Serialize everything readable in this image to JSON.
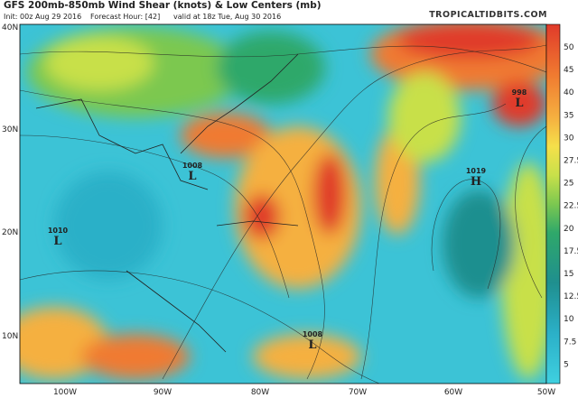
{
  "header": {
    "title": "GFS 200mb-850mb Wind Shear (knots) & Low Centers (mb)",
    "init": "Init: 00z Aug 29 2016",
    "forecast": "Forecast Hour: [42]",
    "valid": "valid at 18z Tue, Aug 30 2016",
    "site": "TROPICALTIDBITS.COM"
  },
  "colorbar": {
    "labels": [
      "50",
      "45",
      "40",
      "35",
      "30",
      "27.5",
      "25",
      "22.5",
      "20",
      "17.5",
      "15",
      "12.5",
      "10",
      "7.5",
      "5"
    ]
  },
  "axes": {
    "lat_labels": [
      "40N",
      "30N",
      "20N",
      "10N"
    ],
    "lon_labels": [
      "100W",
      "90W",
      "80W",
      "70W",
      "60W",
      "50W"
    ]
  },
  "centers": [
    {
      "pressure": "998",
      "symbol": "L"
    },
    {
      "pressure": "1008",
      "symbol": "L"
    },
    {
      "pressure": "1019",
      "symbol": "H"
    },
    {
      "pressure": "1010",
      "symbol": "L"
    },
    {
      "pressure": "1008",
      "symbol": "L"
    }
  ]
}
